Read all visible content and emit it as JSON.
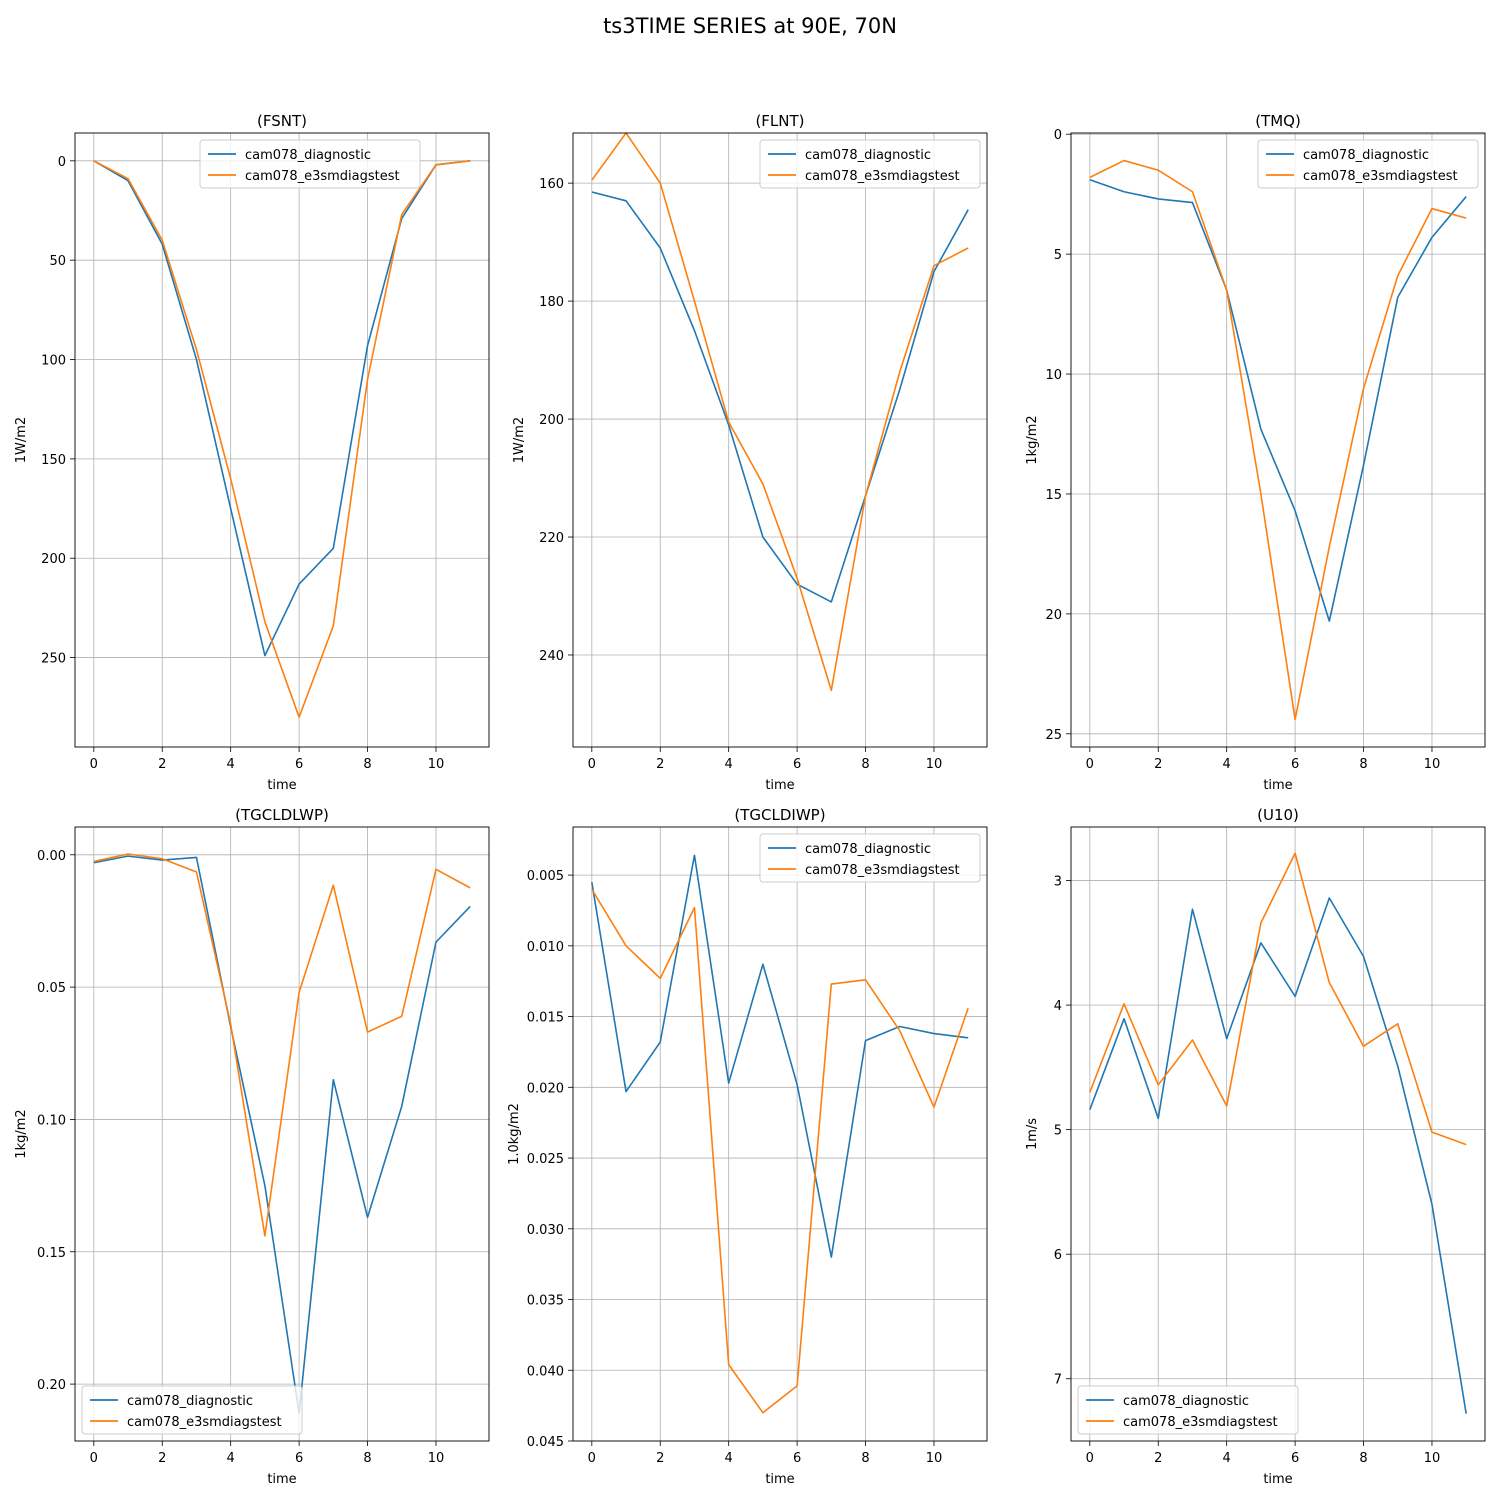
{
  "figure": {
    "title": "ts3TIME SERIES at 90E, 70N"
  },
  "colors": {
    "cam078_diagnostic": "#1f77b4",
    "cam078_e3smdiagstest": "#ff7f0e",
    "grid": "#b0b0b0"
  },
  "chart_data": [
    {
      "type": "line",
      "title": "(FSNT)",
      "xlabel": "time",
      "ylabel": "1W/m2",
      "xlim": [
        -0.55,
        11.55
      ],
      "xticks": [
        0,
        2,
        4,
        6,
        8,
        10
      ],
      "ylim": [
        -14,
        295
      ],
      "y_inverted": true,
      "yticks": [
        0,
        50,
        100,
        150,
        200,
        250
      ],
      "ytick_labels": [
        "0",
        "50",
        "100",
        "150",
        "200",
        "250"
      ],
      "grid": true,
      "legend": {
        "placement": "top-center",
        "entries": [
          "cam078_diagnostic",
          "cam078_e3smdiagstest"
        ]
      },
      "x": [
        0,
        1,
        2,
        3,
        4,
        5,
        6,
        7,
        8,
        9,
        10,
        11
      ],
      "series": [
        {
          "name": "cam078_diagnostic",
          "values": [
            0,
            10,
            42,
            100,
            175,
            249,
            213,
            195,
            93,
            29,
            2,
            0
          ]
        },
        {
          "name": "cam078_e3smdiagstest",
          "values": [
            0,
            9,
            40,
            95,
            160,
            232,
            280,
            234,
            110,
            27,
            2,
            0
          ]
        }
      ]
    },
    {
      "type": "line",
      "title": "(FLNT)",
      "xlabel": "time",
      "ylabel": "1W/m2",
      "xlim": [
        -0.55,
        11.55
      ],
      "xticks": [
        0,
        2,
        4,
        6,
        8,
        10
      ],
      "ylim": [
        151.5,
        255.6
      ],
      "y_inverted": true,
      "yticks": [
        160,
        180,
        200,
        220,
        240
      ],
      "ytick_labels": [
        "160",
        "180",
        "200",
        "220",
        "240"
      ],
      "grid": true,
      "legend": {
        "placement": "top-right",
        "entries": [
          "cam078_diagnostic",
          "cam078_e3smdiagstest"
        ]
      },
      "x": [
        0,
        1,
        2,
        3,
        4,
        5,
        6,
        7,
        8,
        9,
        10,
        11
      ],
      "series": [
        {
          "name": "cam078_diagnostic",
          "values": [
            161.5,
            163,
            171,
            185,
            201,
            220,
            228,
            231,
            213,
            195,
            175,
            164.5
          ]
        },
        {
          "name": "cam078_e3smdiagstest",
          "values": [
            159.5,
            151.5,
            160,
            180,
            200.5,
            211,
            227,
            246,
            213,
            192,
            174,
            171
          ]
        }
      ]
    },
    {
      "type": "line",
      "title": "(TMQ)",
      "xlabel": "time",
      "ylabel": "1kg/m2",
      "xlim": [
        -0.55,
        11.55
      ],
      "xticks": [
        0,
        2,
        4,
        6,
        8,
        10
      ],
      "ylim": [
        -0.05,
        25.55
      ],
      "y_inverted": true,
      "yticks": [
        0,
        5,
        10,
        15,
        20,
        25
      ],
      "ytick_labels": [
        "0",
        "5",
        "10",
        "15",
        "20",
        "25"
      ],
      "grid": true,
      "legend": {
        "placement": "top-right",
        "entries": [
          "cam078_diagnostic",
          "cam078_e3smdiagstest"
        ]
      },
      "x": [
        0,
        1,
        2,
        3,
        4,
        5,
        6,
        7,
        8,
        9,
        10,
        11
      ],
      "series": [
        {
          "name": "cam078_diagnostic",
          "values": [
            1.9,
            2.4,
            2.7,
            2.85,
            6.5,
            12.3,
            15.7,
            20.3,
            13.8,
            6.8,
            4.3,
            2.6
          ]
        },
        {
          "name": "cam078_e3smdiagstest",
          "values": [
            1.8,
            1.1,
            1.5,
            2.4,
            6.5,
            15,
            24.4,
            17.2,
            10.6,
            5.9,
            3.1,
            3.5
          ]
        }
      ]
    },
    {
      "type": "line",
      "title": "(TGCLDLWP)",
      "xlabel": "time",
      "ylabel": "1kg/m2",
      "xlim": [
        -0.55,
        11.55
      ],
      "xticks": [
        0,
        2,
        4,
        6,
        8,
        10
      ],
      "ylim": [
        -0.0105,
        0.2215
      ],
      "y_inverted": true,
      "yticks": [
        0,
        0.05,
        0.1,
        0.15,
        0.2
      ],
      "ytick_labels": [
        "0.00",
        "0.05",
        "0.10",
        "0.15",
        "0.20"
      ],
      "grid": true,
      "legend": {
        "placement": "bottom-left",
        "entries": [
          "cam078_diagnostic",
          "cam078_e3smdiagstest"
        ]
      },
      "x": [
        0,
        1,
        2,
        3,
        4,
        5,
        6,
        7,
        8,
        9,
        10,
        11
      ],
      "series": [
        {
          "name": "cam078_diagnostic",
          "values": [
            0.003,
            0.0005,
            0.002,
            0.001,
            0.065,
            0.125,
            0.211,
            0.085,
            0.137,
            0.095,
            0.033,
            0.0195
          ]
        },
        {
          "name": "cam078_e3smdiagstest",
          "values": [
            0.0025,
            -0.0003,
            0.0015,
            0.0065,
            0.064,
            0.144,
            0.052,
            0.0115,
            0.067,
            0.061,
            0.0055,
            0.0125
          ]
        }
      ]
    },
    {
      "type": "line",
      "title": "(TGCLDIWP)",
      "xlabel": "time",
      "ylabel": "1.0kg/m2",
      "xlim": [
        -0.55,
        11.55
      ],
      "xticks": [
        0,
        2,
        4,
        6,
        8,
        10
      ],
      "ylim": [
        0.0016,
        0.045
      ],
      "y_inverted": true,
      "yticks": [
        0.005,
        0.01,
        0.015,
        0.02,
        0.025,
        0.03,
        0.035,
        0.04,
        0.045
      ],
      "ytick_labels": [
        "0.005",
        "0.010",
        "0.015",
        "0.020",
        "0.025",
        "0.030",
        "0.035",
        "0.040",
        "0.045"
      ],
      "grid": true,
      "legend": {
        "placement": "top-right",
        "entries": [
          "cam078_diagnostic",
          "cam078_e3smdiagstest"
        ]
      },
      "x": [
        0,
        1,
        2,
        3,
        4,
        5,
        6,
        7,
        8,
        9,
        10,
        11
      ],
      "series": [
        {
          "name": "cam078_diagnostic",
          "values": [
            0.0055,
            0.0203,
            0.0168,
            0.0036,
            0.0197,
            0.0113,
            0.0198,
            0.032,
            0.0167,
            0.0157,
            0.0162,
            0.0165
          ]
        },
        {
          "name": "cam078_e3smdiagstest",
          "values": [
            0.006,
            0.01,
            0.0123,
            0.0073,
            0.0396,
            0.043,
            0.0411,
            0.0127,
            0.0124,
            0.016,
            0.0214,
            0.0144
          ]
        }
      ]
    },
    {
      "type": "line",
      "title": "(U10)",
      "xlabel": "time",
      "ylabel": "1m/s",
      "xlim": [
        -0.55,
        11.55
      ],
      "xticks": [
        0,
        2,
        4,
        6,
        8,
        10
      ],
      "ylim": [
        2.57,
        7.5
      ],
      "y_inverted": true,
      "yticks": [
        3,
        4,
        5,
        6,
        7
      ],
      "ytick_labels": [
        "3",
        "4",
        "5",
        "6",
        "7"
      ],
      "grid": true,
      "legend": {
        "placement": "bottom-left",
        "entries": [
          "cam078_diagnostic",
          "cam078_e3smdiagstest"
        ]
      },
      "x": [
        0,
        1,
        2,
        3,
        4,
        5,
        6,
        7,
        8,
        9,
        10,
        11
      ],
      "series": [
        {
          "name": "cam078_diagnostic",
          "values": [
            4.84,
            4.11,
            4.91,
            3.23,
            4.27,
            3.5,
            3.93,
            3.14,
            3.61,
            4.49,
            5.6,
            7.28
          ]
        },
        {
          "name": "cam078_e3smdiagstest",
          "values": [
            4.7,
            3.99,
            4.64,
            4.28,
            4.81,
            3.34,
            2.78,
            3.82,
            4.33,
            4.15,
            5.02,
            5.12
          ]
        }
      ]
    }
  ]
}
